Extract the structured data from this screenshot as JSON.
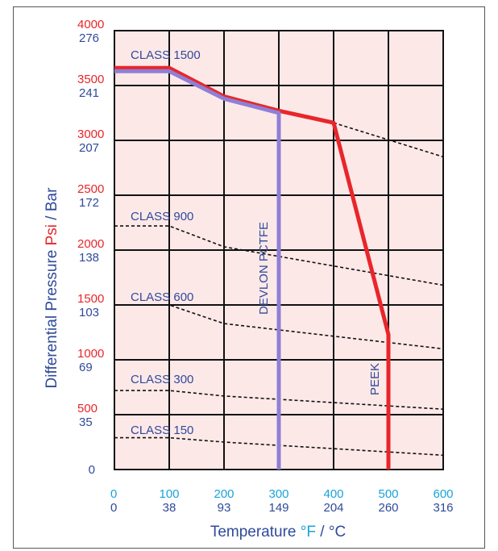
{
  "chart_data": {
    "type": "line",
    "title": "",
    "x_unit_f": "°F",
    "x_unit_c": "°C",
    "xlim": [
      0,
      600
    ],
    "ylim": [
      0,
      4000
    ],
    "grid": true,
    "colors": {
      "plot_background": "#fde8e8",
      "psi": "#e8262a",
      "bar": "#2f4a9a",
      "fahrenheit": "#1aa3d9",
      "peek_line": "#e8262a",
      "pctfe_line": "#8f7fd6",
      "class_line": "#111111"
    },
    "x_ticks": [
      {
        "f": "0",
        "c": "0",
        "value": 0
      },
      {
        "f": "100",
        "c": "38",
        "value": 100
      },
      {
        "f": "200",
        "c": "93",
        "value": 200
      },
      {
        "f": "300",
        "c": "149",
        "value": 300
      },
      {
        "f": "400",
        "c": "204",
        "value": 400
      },
      {
        "f": "500",
        "c": "260",
        "value": 500
      },
      {
        "f": "600",
        "c": "316",
        "value": 600
      }
    ],
    "y_ticks": [
      {
        "psi": "4000",
        "bar": "276",
        "value": 4000
      },
      {
        "psi": "3500",
        "bar": "241",
        "value": 3500
      },
      {
        "psi": "3000",
        "bar": "207",
        "value": 3000
      },
      {
        "psi": "2500",
        "bar": "172",
        "value": 2500
      },
      {
        "psi": "2000",
        "bar": "138",
        "value": 2000
      },
      {
        "psi": "1500",
        "bar": "103",
        "value": 1500
      },
      {
        "psi": "1000",
        "bar": "69",
        "value": 1000
      },
      {
        "psi": "500",
        "bar": "35",
        "value": 500
      },
      {
        "psi": "0",
        "bar": "",
        "value": 0
      }
    ],
    "xlabel": {
      "text": "Temperature ",
      "unit_f": "°F",
      "sep": " / ",
      "unit_c": "°C"
    },
    "ylabel": {
      "text": "Differential  Pressure ",
      "psi": "Psi",
      "sep": " / ",
      "bar": "Bar"
    },
    "series": [
      {
        "name": "PEEK",
        "style": "solid",
        "color": "#e8262a",
        "x": [
          0,
          100,
          200,
          300,
          400,
          500,
          500
        ],
        "y": [
          3660,
          3660,
          3400,
          3270,
          3160,
          1230,
          0
        ]
      },
      {
        "name": "DEVLON  PCTFE",
        "style": "solid",
        "color": "#8f7fd6",
        "x": [
          0,
          100,
          200,
          300,
          300
        ],
        "y": [
          3630,
          3630,
          3380,
          3250,
          0
        ]
      },
      {
        "name": "CLASS 1500",
        "style": "dashed",
        "x": [
          400,
          600
        ],
        "y": [
          3160,
          2850
        ]
      },
      {
        "name": "CLASS 900",
        "style": "dashed",
        "x": [
          0,
          100,
          200,
          600
        ],
        "y": [
          2220,
          2220,
          2030,
          1680
        ]
      },
      {
        "name": "CLASS 600",
        "style": "dashed",
        "x": [
          0,
          100,
          200,
          600
        ],
        "y": [
          1500,
          1500,
          1330,
          1100
        ]
      },
      {
        "name": "CLASS 300",
        "style": "dashed",
        "x": [
          0,
          100,
          200,
          600
        ],
        "y": [
          720,
          720,
          670,
          550
        ]
      },
      {
        "name": "CLASS 150",
        "style": "dashed",
        "x": [
          0,
          100,
          200,
          600
        ],
        "y": [
          290,
          290,
          250,
          130
        ]
      }
    ],
    "annotations": {
      "class_1500": "CLASS 1500",
      "class_900": "CLASS 900",
      "class_600": "CLASS 600",
      "class_300": "CLASS 300",
      "class_150": "CLASS 150",
      "pctfe": "DEVLON  PCTFE",
      "peek": "PEEK"
    }
  }
}
